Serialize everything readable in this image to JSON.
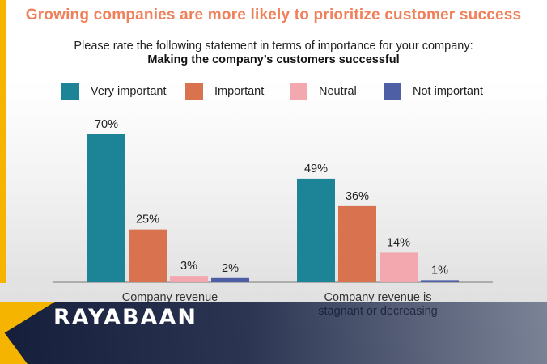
{
  "header": {
    "title": "Growing companies are more likely to prioritize customer success",
    "subtitle": "Please rate the following statement in terms of importance for your company:",
    "subtitle_bold": "Making the company’s customers successful"
  },
  "brand": {
    "name": "RAYABAAN"
  },
  "colors": {
    "title": "#f0805a",
    "very_important": "#1d8396",
    "important": "#d9724f",
    "neutral": "#f2a8ae",
    "not_important": "#4f5fa6",
    "brand_accent": "#f4b400"
  },
  "chart_data": {
    "type": "bar",
    "categories": [
      "Company revenue",
      "Company revenue is stagnant or decreasing"
    ],
    "series": [
      {
        "name": "Very important",
        "values": [
          70,
          49
        ],
        "labels": [
          "70%",
          "49%"
        ]
      },
      {
        "name": "Important",
        "values": [
          25,
          36
        ],
        "labels": [
          "25%",
          "36%"
        ]
      },
      {
        "name": "Neutral",
        "values": [
          3,
          14
        ],
        "labels": [
          "3%",
          "14%"
        ]
      },
      {
        "name": "Not important",
        "values": [
          2,
          1
        ],
        "labels": [
          "2%",
          "1%"
        ]
      }
    ],
    "unit": "%",
    "ylim": [
      0,
      70
    ],
    "grid": false,
    "legend_position": "top"
  }
}
